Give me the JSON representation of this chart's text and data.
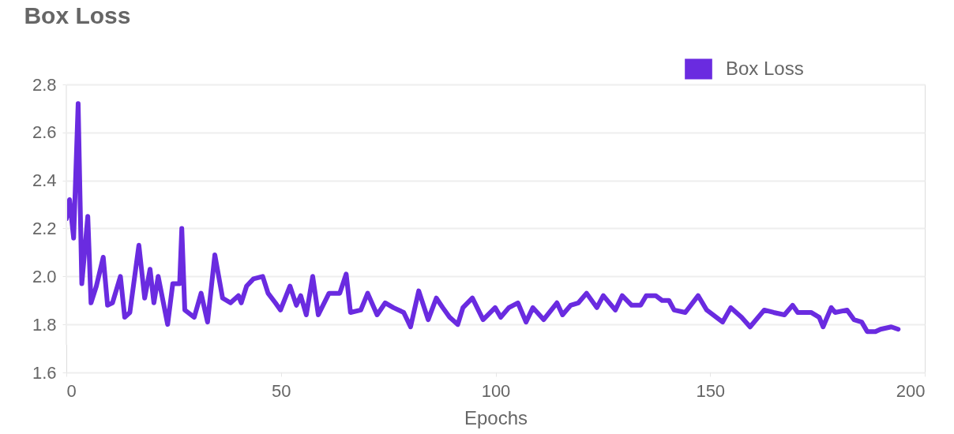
{
  "chart_data": {
    "type": "line",
    "title": "Box Loss",
    "xlabel": "Epochs",
    "x": [
      0,
      0.75,
      1.7,
      2.75,
      3.6,
      5,
      5.75,
      7,
      8.6,
      9.6,
      10.75,
      12.6,
      13.6,
      14.8,
      16.9,
      18.25,
      19.5,
      20.4,
      21.4,
      23.6,
      24.8,
      26.4,
      26.9,
      27.6,
      29.8,
      31.4,
      32.9,
      34.6,
      36.4,
      38.25,
      40.1,
      40.75,
      42,
      43.6,
      45.75,
      47,
      48.7,
      49.9,
      52.1,
      53.6,
      54.6,
      55.9,
      57.4,
      58.7,
      61.2,
      63.7,
      65.2,
      66.2,
      68.6,
      70.2,
      72.4,
      74.3,
      76.2,
      78.6,
      80.2,
      82.1,
      84.3,
      86.2,
      87.7,
      89.3,
      91.2,
      92.4,
      94.6,
      97.1,
      99.9,
      101.2,
      103.1,
      105.2,
      107.1,
      108.7,
      111.2,
      114.3,
      115.6,
      117.5,
      119.3,
      121.2,
      123.6,
      125.1,
      127.9,
      129.5,
      131.7,
      133.8,
      135.1,
      137.3,
      138.8,
      140.4,
      141.6,
      144.2,
      147.2,
      149.2,
      152.9,
      154.8,
      157.3,
      159.3,
      162.6,
      164.8,
      167.3,
      169.2,
      170.4,
      173.5,
      175.4,
      176.3,
      178.2,
      179.1,
      181.9,
      183.5,
      185.3,
      186.6,
      188.5,
      189.7,
      192.2,
      193.8
    ],
    "series": [
      {
        "name": "Box Loss",
        "color": "#6a2be0",
        "values": [
          2.24,
          2.32,
          2.16,
          2.72,
          1.97,
          2.25,
          1.89,
          1.96,
          2.08,
          1.88,
          1.89,
          2.0,
          1.83,
          1.85,
          2.13,
          1.91,
          2.03,
          1.89,
          2.0,
          1.8,
          1.97,
          1.97,
          2.2,
          1.86,
          1.83,
          1.93,
          1.81,
          2.09,
          1.91,
          1.89,
          1.92,
          1.89,
          1.96,
          1.99,
          2.0,
          1.93,
          1.89,
          1.86,
          1.96,
          1.88,
          1.92,
          1.84,
          2.0,
          1.84,
          1.93,
          1.93,
          2.01,
          1.85,
          1.86,
          1.93,
          1.84,
          1.89,
          1.87,
          1.85,
          1.79,
          1.94,
          1.82,
          1.91,
          1.87,
          1.83,
          1.8,
          1.87,
          1.91,
          1.82,
          1.87,
          1.83,
          1.87,
          1.89,
          1.81,
          1.87,
          1.82,
          1.89,
          1.84,
          1.88,
          1.89,
          1.93,
          1.87,
          1.92,
          1.86,
          1.92,
          1.88,
          1.88,
          1.92,
          1.92,
          1.9,
          1.9,
          1.86,
          1.85,
          1.92,
          1.86,
          1.81,
          1.87,
          1.83,
          1.79,
          1.86,
          1.85,
          1.84,
          1.88,
          1.85,
          1.85,
          1.83,
          1.79,
          1.87,
          1.85,
          1.86,
          1.82,
          1.81,
          1.77,
          1.77,
          1.78,
          1.79,
          1.78
        ]
      }
    ],
    "xlim": [
      0,
      200
    ],
    "xticks": [
      0,
      50,
      100,
      150,
      200
    ],
    "ylim": [
      1.6,
      2.8
    ],
    "yticks": [
      1.6,
      1.8,
      {
        "value": 2.0,
        "label": "2.0"
      },
      2.2,
      2.4,
      2.6,
      2.8
    ],
    "grid": "y",
    "legend": "top right",
    "marker": "none",
    "line_style": "solid"
  }
}
